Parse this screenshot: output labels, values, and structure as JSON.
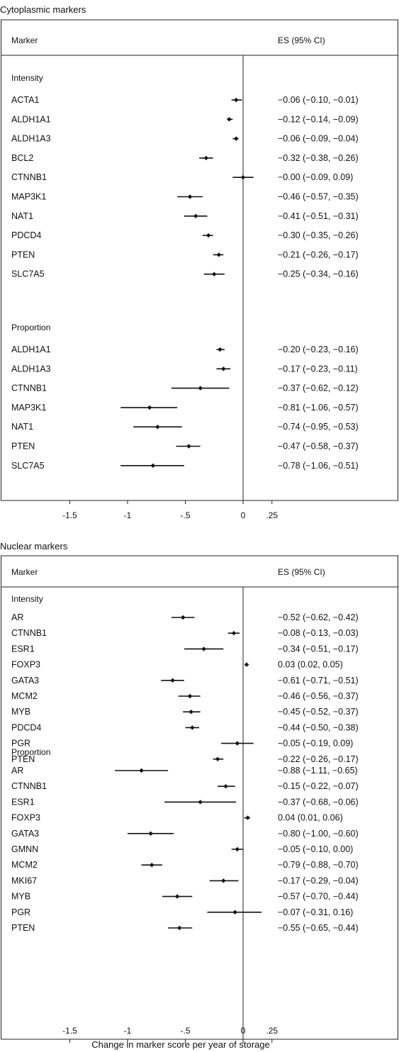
{
  "chart_data": [
    {
      "type": "forest",
      "title": "Cytoplasmic markers",
      "col_label": "Marker",
      "col_es": "ES (95% CI)",
      "xlim": [
        -2.0,
        0.5
      ],
      "xticks": [
        "-1.5",
        "-1",
        "-.5",
        "0",
        ".25"
      ],
      "xtick_values": [
        -1.5,
        -1,
        -0.5,
        0,
        0.25
      ],
      "groups": [
        {
          "name": "Intensity",
          "rows": [
            {
              "label": "ACTA1",
              "es": -0.06,
              "lo": -0.1,
              "hi": -0.01,
              "text": "−0.06 (−0.10, −0.01)"
            },
            {
              "label": "ALDH1A1",
              "es": -0.12,
              "lo": -0.14,
              "hi": -0.09,
              "text": "−0.12 (−0.14, −0.09)"
            },
            {
              "label": "ALDH1A3",
              "es": -0.06,
              "lo": -0.09,
              "hi": -0.04,
              "text": "−0.06 (−0.09, −0.04)"
            },
            {
              "label": "BCL2",
              "es": -0.32,
              "lo": -0.38,
              "hi": -0.26,
              "text": "−0.32 (−0.38, −0.26)"
            },
            {
              "label": "CTNNB1",
              "es": -0.0,
              "lo": -0.09,
              "hi": 0.09,
              "text": "−0.00 (−0.09, 0.09)"
            },
            {
              "label": "MAP3K1",
              "es": -0.46,
              "lo": -0.57,
              "hi": -0.35,
              "text": "−0.46 (−0.57, −0.35)"
            },
            {
              "label": "NAT1",
              "es": -0.41,
              "lo": -0.51,
              "hi": -0.31,
              "text": "−0.41 (−0.51, −0.31)"
            },
            {
              "label": "PDCD4",
              "es": -0.3,
              "lo": -0.35,
              "hi": -0.26,
              "text": "−0.30 (−0.35, −0.26)"
            },
            {
              "label": "PTEN",
              "es": -0.21,
              "lo": -0.26,
              "hi": -0.17,
              "text": "−0.21 (−0.26, −0.17)"
            },
            {
              "label": "SLC7A5",
              "es": -0.25,
              "lo": -0.34,
              "hi": -0.16,
              "text": "−0.25 (−0.34, −0.16)"
            }
          ]
        },
        {
          "name": "Proportion",
          "rows": [
            {
              "label": "ALDH1A1",
              "es": -0.2,
              "lo": -0.23,
              "hi": -0.16,
              "text": "−0.20 (−0.23, −0.16)"
            },
            {
              "label": "ALDH1A3",
              "es": -0.17,
              "lo": -0.23,
              "hi": -0.11,
              "text": "−0.17 (−0.23, −0.11)"
            },
            {
              "label": "CTNNB1",
              "es": -0.37,
              "lo": -0.62,
              "hi": -0.12,
              "text": "−0.37 (−0.62, −0.12)"
            },
            {
              "label": "MAP3K1",
              "es": -0.81,
              "lo": -1.06,
              "hi": -0.57,
              "text": "−0.81 (−1.06, −0.57)"
            },
            {
              "label": "NAT1",
              "es": -0.74,
              "lo": -0.95,
              "hi": -0.53,
              "text": "−0.74 (−0.95, −0.53)"
            },
            {
              "label": "PTEN",
              "es": -0.47,
              "lo": -0.58,
              "hi": -0.37,
              "text": "−0.47 (−0.58, −0.37)"
            },
            {
              "label": "SLC7A5",
              "es": -0.78,
              "lo": -1.06,
              "hi": -0.51,
              "text": "−0.78 (−1.06, −0.51)"
            }
          ]
        }
      ]
    },
    {
      "type": "forest",
      "title": "Nuclear markers",
      "col_label": "Marker",
      "col_es": "ES (95% CI)",
      "xlim": [
        -2.0,
        0.5
      ],
      "xticks": [
        "-1.5",
        "-1",
        "-.5",
        "0",
        ".25"
      ],
      "xtick_values": [
        -1.5,
        -1,
        -0.5,
        0,
        0.25
      ],
      "xlabel": "Change in marker score per year of storage",
      "groups": [
        {
          "name": "Intensity",
          "rows": [
            {
              "label": "AR",
              "es": -0.52,
              "lo": -0.62,
              "hi": -0.42,
              "text": "−0.52 (−0.62, −0.42)"
            },
            {
              "label": "CTNNB1",
              "es": -0.08,
              "lo": -0.13,
              "hi": -0.03,
              "text": "−0.08 (−0.13, −0.03)"
            },
            {
              "label": "ESR1",
              "es": -0.34,
              "lo": -0.51,
              "hi": -0.17,
              "text": "−0.34 (−0.51, −0.17)"
            },
            {
              "label": "FOXP3",
              "es": 0.03,
              "lo": 0.02,
              "hi": 0.05,
              "text": "0.03 (0.02, 0.05)"
            },
            {
              "label": "GATA3",
              "es": -0.61,
              "lo": -0.71,
              "hi": -0.51,
              "text": "−0.61 (−0.71, −0.51)"
            },
            {
              "label": "MCM2",
              "es": -0.46,
              "lo": -0.56,
              "hi": -0.37,
              "text": "−0.46 (−0.56, −0.37)"
            },
            {
              "label": "MYB",
              "es": -0.45,
              "lo": -0.52,
              "hi": -0.37,
              "text": "−0.45 (−0.52, −0.37)"
            },
            {
              "label": "PDCD4",
              "es": -0.44,
              "lo": -0.5,
              "hi": -0.38,
              "text": "−0.44 (−0.50, −0.38)"
            },
            {
              "label": "PGR",
              "es": -0.05,
              "lo": -0.19,
              "hi": 0.09,
              "text": "−0.05 (−0.19, 0.09)"
            },
            {
              "label": "PTEN",
              "es": -0.22,
              "lo": -0.26,
              "hi": -0.17,
              "text": "−0.22 (−0.26, −0.17)"
            }
          ]
        },
        {
          "name": "Proportion",
          "rows": [
            {
              "label": "AR",
              "es": -0.88,
              "lo": -1.11,
              "hi": -0.65,
              "text": "−0.88 (−1.11, −0.65)"
            },
            {
              "label": "CTNNB1",
              "es": -0.15,
              "lo": -0.22,
              "hi": -0.07,
              "text": "−0.15 (−0.22, −0.07)"
            },
            {
              "label": "ESR1",
              "es": -0.37,
              "lo": -0.68,
              "hi": -0.06,
              "text": "−0.37 (−0.68, −0.06)"
            },
            {
              "label": "FOXP3",
              "es": 0.04,
              "lo": 0.01,
              "hi": 0.06,
              "text": "0.04 (0.01, 0.06)"
            },
            {
              "label": "GATA3",
              "es": -0.8,
              "lo": -1.0,
              "hi": -0.6,
              "text": "−0.80 (−1.00, −0.60)"
            },
            {
              "label": "GMNN",
              "es": -0.05,
              "lo": -0.1,
              "hi": 0.0,
              "text": "−0.05 (−0.10, 0.00)"
            },
            {
              "label": "MCM2",
              "es": -0.79,
              "lo": -0.88,
              "hi": -0.7,
              "text": "−0.79 (−0.88, −0.70)"
            },
            {
              "label": "MKI67",
              "es": -0.17,
              "lo": -0.29,
              "hi": -0.04,
              "text": "−0.17 (−0.29, −0.04)"
            },
            {
              "label": "MYB",
              "es": -0.57,
              "lo": -0.7,
              "hi": -0.44,
              "text": "−0.57 (−0.70, −0.44)"
            },
            {
              "label": "PGR",
              "es": -0.07,
              "lo": -0.31,
              "hi": 0.16,
              "text": "−0.07 (−0.31, 0.16)"
            },
            {
              "label": "PTEN",
              "es": -0.55,
              "lo": -0.65,
              "hi": -0.44,
              "text": "−0.55 (−0.65, −0.44)"
            }
          ]
        }
      ]
    }
  ]
}
